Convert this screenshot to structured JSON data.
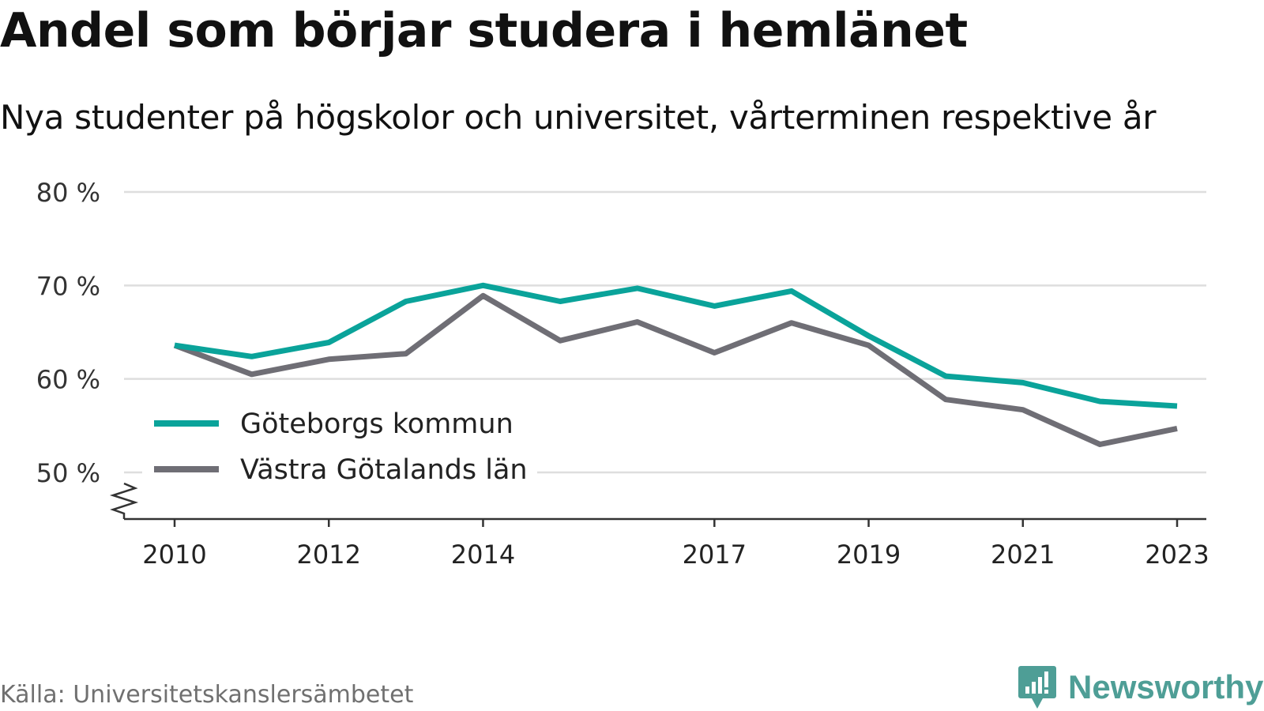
{
  "title": "Andel som börjar studera i hemlänet",
  "subtitle": "Nya studenter på högskolor och universitet, vårterminen respektive år",
  "source": "Källa: Universitetskanslersämbetet",
  "brand": {
    "name": "Newsworthy",
    "icon": "newsworthy-logo-icon",
    "color": "#4e9e96"
  },
  "chart_data": {
    "type": "line",
    "title": "Andel som börjar studera i hemlänet",
    "subtitle": "Nya studenter på högskolor och universitet, vårterminen respektive år",
    "x": [
      2010,
      2011,
      2012,
      2013,
      2014,
      2015,
      2016,
      2017,
      2018,
      2019,
      2020,
      2021,
      2022,
      2023
    ],
    "x_ticks": [
      2010,
      2012,
      2014,
      2017,
      2019,
      2021,
      2023
    ],
    "x_tick_labels": [
      "2010",
      "2012",
      "2014",
      "2017",
      "2019",
      "2021",
      "2023"
    ],
    "y_ticks": [
      50,
      60,
      70,
      80
    ],
    "y_tick_labels": [
      "50 %",
      "60 %",
      "70 %",
      "80 %"
    ],
    "ylim": [
      45,
      80
    ],
    "y_axis_break": true,
    "grid": "horizontal",
    "legend_position": "bottom-left",
    "series": [
      {
        "name": "Göteborgs kommun",
        "color": "#0aa39a",
        "values": [
          63.6,
          62.4,
          63.9,
          68.3,
          70.0,
          68.3,
          69.7,
          67.8,
          69.4,
          64.6,
          60.3,
          59.6,
          57.6,
          57.1
        ]
      },
      {
        "name": "Västra Götalands län",
        "color": "#6f6e75",
        "values": [
          63.6,
          60.5,
          62.1,
          62.7,
          68.9,
          64.1,
          66.1,
          62.8,
          66.0,
          63.6,
          57.8,
          56.7,
          53.0,
          54.7
        ]
      }
    ]
  }
}
